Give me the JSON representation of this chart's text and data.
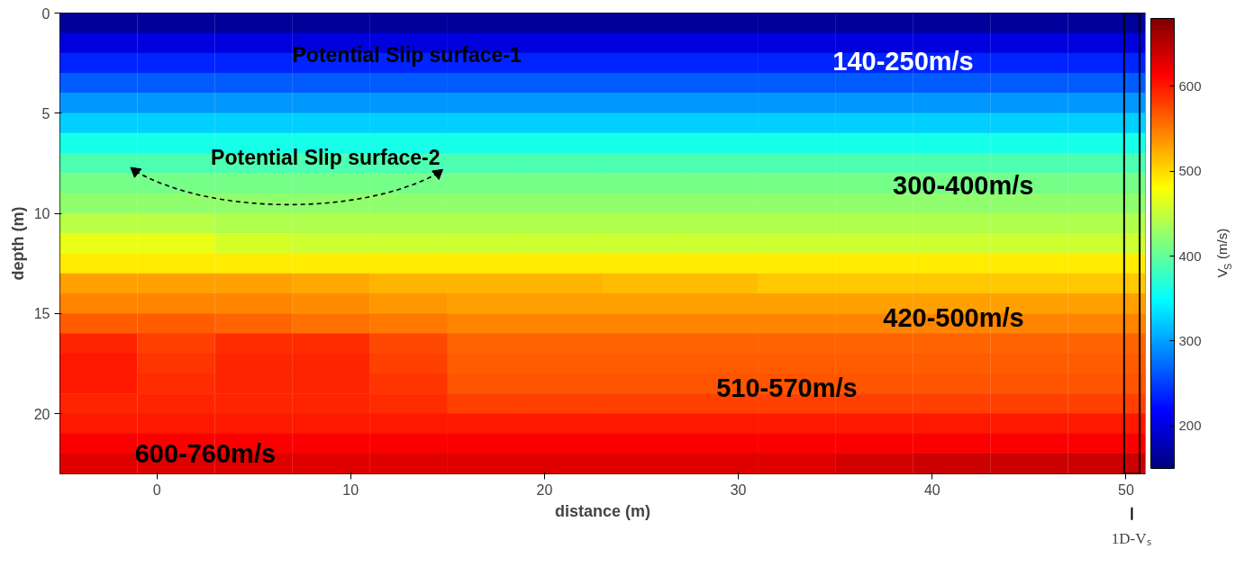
{
  "chart_data": {
    "type": "heatmap",
    "xlabel": "distance (m)",
    "ylabel": "depth (m)",
    "clabel": "V$_{S}$ (m/s)",
    "xlim": [
      -5,
      51
    ],
    "ylim": [
      23,
      0
    ],
    "xticks": [
      0,
      10,
      20,
      30,
      40,
      50
    ],
    "yticks": [
      0,
      5,
      10,
      15,
      20
    ],
    "clim": [
      150,
      680
    ],
    "cticks": [
      200,
      300,
      400,
      500,
      600
    ],
    "x": [
      -3,
      1,
      5,
      9,
      13,
      17,
      21,
      25,
      29,
      33,
      37,
      41,
      45,
      49
    ],
    "y": [
      0.5,
      1.5,
      2.5,
      3.5,
      4.5,
      5.5,
      6.5,
      7.5,
      8.5,
      9.5,
      10.5,
      11.5,
      12.5,
      13.5,
      14.5,
      15.5,
      16.5,
      17.5,
      18.5,
      19.5,
      20.5,
      21.5,
      22.5
    ],
    "cells": [
      [
        165,
        165,
        165,
        165,
        165,
        165,
        165,
        165,
        165,
        165,
        165,
        165,
        165,
        165
      ],
      [
        200,
        200,
        200,
        200,
        200,
        200,
        200,
        200,
        200,
        200,
        200,
        200,
        200,
        200
      ],
      [
        235,
        235,
        235,
        235,
        235,
        235,
        235,
        235,
        235,
        235,
        235,
        235,
        235,
        235
      ],
      [
        265,
        265,
        265,
        265,
        265,
        265,
        265,
        265,
        265,
        265,
        265,
        265,
        265,
        265
      ],
      [
        295,
        295,
        295,
        295,
        295,
        295,
        295,
        295,
        295,
        295,
        295,
        295,
        295,
        295
      ],
      [
        325,
        325,
        325,
        325,
        325,
        325,
        325,
        325,
        325,
        325,
        325,
        325,
        325,
        325
      ],
      [
        360,
        360,
        360,
        360,
        360,
        360,
        360,
        360,
        360,
        360,
        360,
        360,
        360,
        360
      ],
      [
        390,
        390,
        390,
        390,
        390,
        390,
        390,
        390,
        390,
        390,
        390,
        390,
        390,
        390
      ],
      [
        410,
        410,
        410,
        410,
        410,
        410,
        410,
        410,
        410,
        410,
        410,
        410,
        410,
        410
      ],
      [
        425,
        425,
        425,
        425,
        425,
        425,
        425,
        425,
        425,
        425,
        425,
        425,
        425,
        425
      ],
      [
        445,
        445,
        440,
        440,
        440,
        440,
        440,
        440,
        440,
        440,
        440,
        440,
        440,
        440
      ],
      [
        470,
        470,
        460,
        455,
        455,
        455,
        455,
        455,
        455,
        455,
        455,
        455,
        455,
        455
      ],
      [
        490,
        490,
        490,
        490,
        490,
        490,
        490,
        490,
        490,
        490,
        490,
        490,
        490,
        490
      ],
      [
        530,
        530,
        530,
        525,
        520,
        520,
        520,
        515,
        515,
        510,
        510,
        510,
        510,
        510
      ],
      [
        545,
        545,
        545,
        540,
        535,
        530,
        530,
        530,
        530,
        530,
        530,
        530,
        530,
        530
      ],
      [
        565,
        565,
        560,
        555,
        550,
        545,
        545,
        545,
        545,
        545,
        545,
        545,
        545,
        545
      ],
      [
        595,
        580,
        590,
        590,
        575,
        560,
        560,
        560,
        560,
        560,
        560,
        560,
        560,
        560
      ],
      [
        600,
        585,
        595,
        595,
        580,
        565,
        565,
        565,
        565,
        565,
        565,
        565,
        565,
        565
      ],
      [
        600,
        590,
        595,
        595,
        585,
        570,
        570,
        570,
        570,
        570,
        570,
        570,
        570,
        570
      ],
      [
        595,
        595,
        595,
        595,
        590,
        580,
        580,
        580,
        580,
        580,
        580,
        580,
        580,
        580
      ],
      [
        600,
        600,
        600,
        600,
        600,
        600,
        600,
        600,
        600,
        600,
        600,
        600,
        600,
        600
      ],
      [
        615,
        615,
        615,
        615,
        615,
        615,
        615,
        615,
        615,
        615,
        615,
        615,
        615,
        615
      ],
      [
        630,
        630,
        630,
        630,
        630,
        630,
        630,
        630,
        630,
        630,
        635,
        640,
        640,
        640
      ]
    ],
    "annotations": [
      "Potential Slip surface-1",
      "Potential Slip surface-2",
      "140-250m/s",
      "300-400m/s",
      "420-500m/s",
      "510-570m/s",
      "600-760m/s",
      "1D-Vₛ"
    ]
  }
}
